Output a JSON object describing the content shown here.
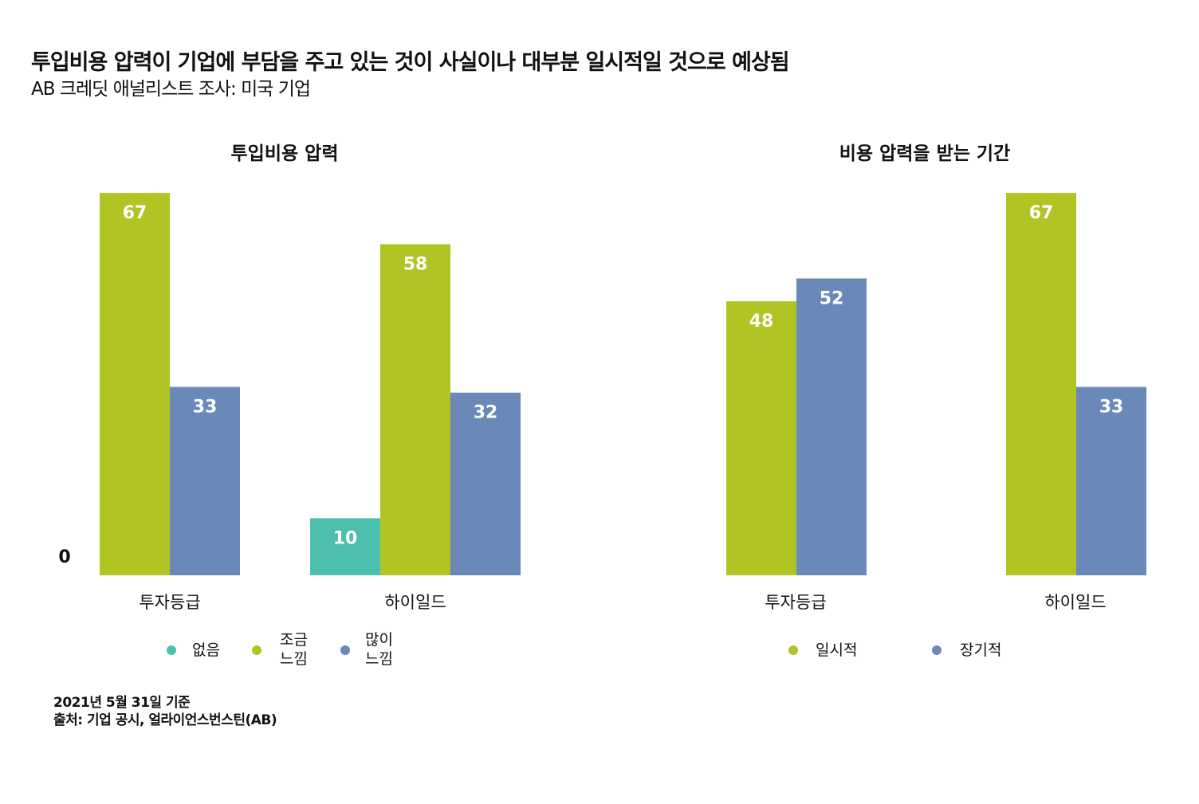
{
  "title": "투입비용 압력이 기업에 부담을 주고 있는 것이 사실이나 대부분 일시적일 것으로 예상됨",
  "subtitle": "AB 크레딧 애널리스트 조사: 미국 기업",
  "footnote": {
    "date": "2021년 5월 31일 기준",
    "source": "출처: 기업 공시, 얼라이언스번스틴(AB)"
  },
  "chart_data": [
    {
      "type": "bar",
      "title": "투입비용 압력",
      "categories": [
        "투자등급",
        "하이일드"
      ],
      "series": [
        {
          "name": "없음",
          "legend_lines": [
            "없음"
          ],
          "color": "#4dbfae",
          "values": [
            0,
            10
          ]
        },
        {
          "name": "조금 느낌",
          "legend_lines": [
            "조금",
            "느낌"
          ],
          "color": "#b2c423",
          "values": [
            67,
            58
          ]
        },
        {
          "name": "많이 느낌",
          "legend_lines": [
            "많이",
            "느낌"
          ],
          "color": "#6a88b8",
          "values": [
            33,
            32
          ]
        }
      ],
      "data_labels": true,
      "ylim": [
        0,
        67
      ],
      "grid": false,
      "legend": "bottom"
    },
    {
      "type": "bar",
      "title": "비용 압력을 받는 기간",
      "categories": [
        "투자등급",
        "하이일드"
      ],
      "series": [
        {
          "name": "일시적",
          "legend_lines": [
            "일시적"
          ],
          "color": "#b2c423",
          "values": [
            48,
            67
          ]
        },
        {
          "name": "장기적",
          "legend_lines": [
            "장기적"
          ],
          "color": "#6a88b8",
          "values": [
            52,
            33
          ]
        }
      ],
      "data_labels": true,
      "ylim": [
        0,
        67
      ],
      "grid": false,
      "legend": "bottom"
    }
  ]
}
